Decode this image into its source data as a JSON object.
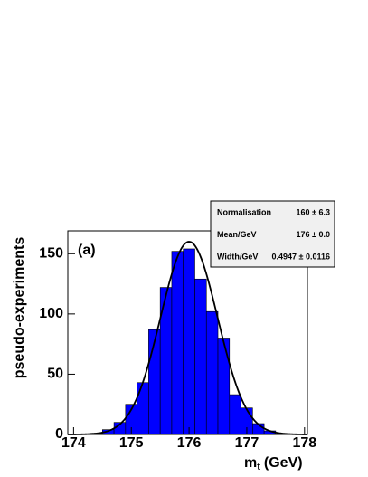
{
  "chart_data": {
    "type": "histogram",
    "bins": [
      174.3,
      174.5,
      174.7,
      174.9,
      175.1,
      175.3,
      175.5,
      175.7,
      175.9,
      176.1,
      176.3,
      176.5,
      176.7,
      176.9,
      177.1,
      177.3,
      177.5
    ],
    "values": [
      1,
      4,
      10,
      25,
      43,
      87,
      122,
      152,
      154,
      129,
      102,
      80,
      33,
      22,
      9,
      3
    ],
    "color": "#0000ff",
    "xlim": [
      173.9,
      178.05
    ],
    "xticks": [
      174,
      175,
      176,
      177,
      178
    ],
    "ylim": [
      0,
      169
    ],
    "yticks": [
      0,
      50,
      100,
      150
    ],
    "ylabel": "pseudo-experiments",
    "xlabel": {
      "base": "m",
      "sub": "t",
      "unit": "(GeV)"
    },
    "annotation": "(a)",
    "fit": {
      "names": [
        "Normalisation",
        "Mean/GeV",
        "Width/GeV"
      ],
      "values": [
        160,
        176,
        0.4947
      ],
      "errors": [
        6.3,
        0.0,
        0.0116
      ],
      "value_labels": [
        "160 ± 6.3",
        "176 ± 0.0",
        "0.4947 ± 0.0116"
      ]
    }
  }
}
